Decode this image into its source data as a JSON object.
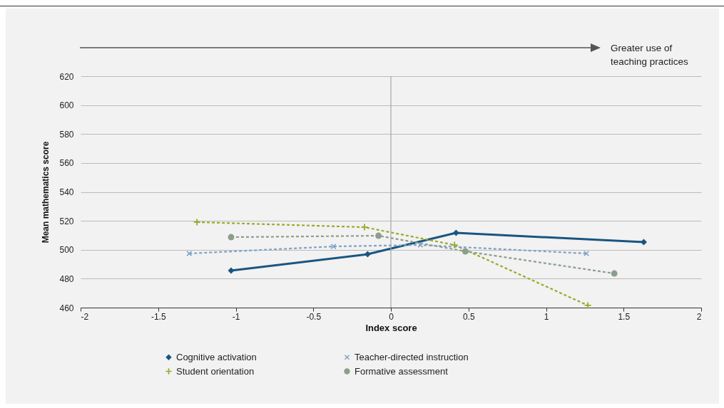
{
  "chart_data": {
    "type": "line",
    "xlabel": "Index score",
    "ylabel": "Mean mathematics score",
    "xlim": [
      -2,
      2
    ],
    "xticks": [
      -2,
      -1.5,
      -1,
      -0.5,
      0,
      0.5,
      1,
      1.5,
      2
    ],
    "ylim": [
      460,
      620
    ],
    "yticks": [
      460,
      480,
      500,
      520,
      540,
      560,
      580,
      600,
      620
    ],
    "grid": "y",
    "legend": "bottom",
    "ref_lines": [
      {
        "axis": "x",
        "value": 0,
        "color": "#a6a6a6"
      }
    ],
    "annotations": [
      "Greater use of teaching practices"
    ],
    "series": [
      {
        "name": "Cognitive activation",
        "color": "#1a5580",
        "marker": "diamond",
        "line_style": "solid",
        "x": [
          -1.03,
          -0.15,
          0.42,
          1.63
        ],
        "values": [
          485.6,
          496.9,
          511.7,
          505.3
        ]
      },
      {
        "name": "Student orientation",
        "color": "#9aaa2a",
        "marker": "plus",
        "line_style": "dashed",
        "x": [
          -1.25,
          -0.17,
          0.41,
          1.27
        ],
        "values": [
          519.1,
          515.6,
          503.3,
          461.5
        ]
      },
      {
        "name": "Teacher-directed instruction",
        "color": "#7fa3c8",
        "marker": "cross",
        "line_style": "dashed",
        "x": [
          -1.3,
          -0.37,
          0.19,
          1.26
        ],
        "values": [
          497.4,
          502.3,
          503.3,
          497.4
        ]
      },
      {
        "name": "Formative assessment",
        "color": "#8c9e8c",
        "marker": "circle",
        "line_style": "dashed",
        "x": [
          -1.03,
          -0.08,
          0.48,
          1.44
        ],
        "values": [
          508.7,
          509.7,
          498.9,
          483.6
        ]
      }
    ]
  }
}
